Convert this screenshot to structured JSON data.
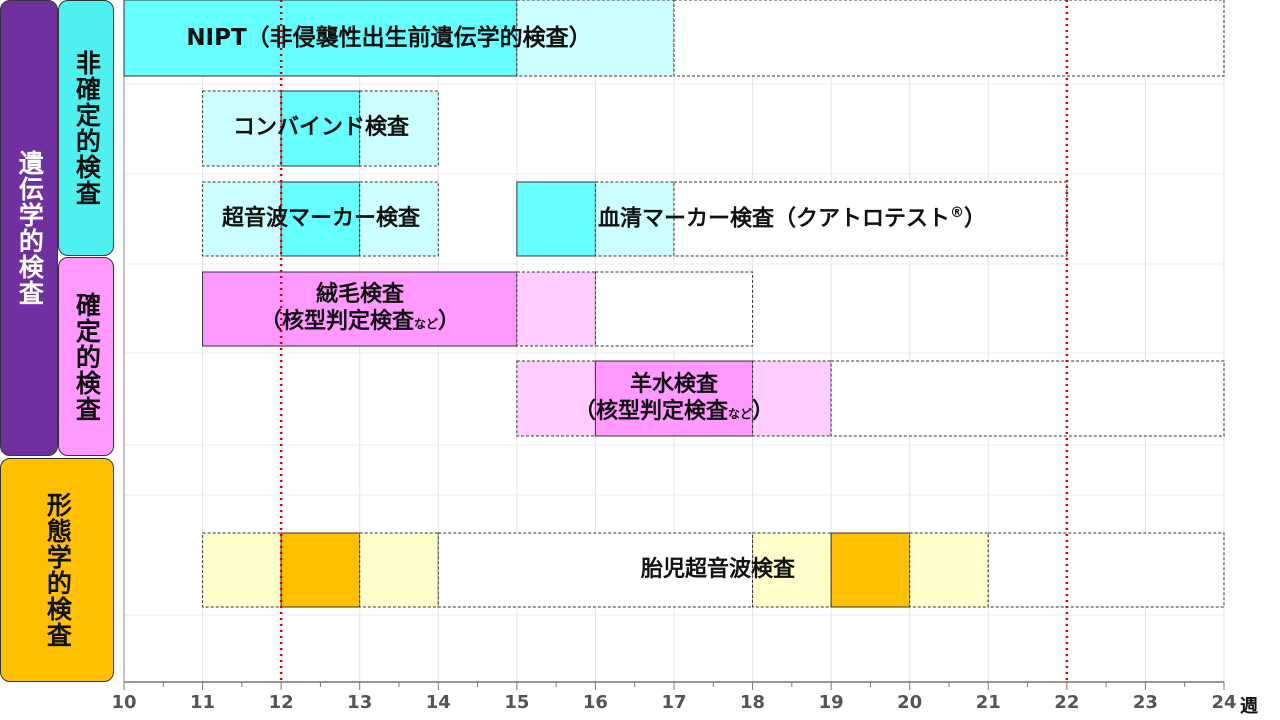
{
  "categories": {
    "genetic": "遺伝学的検査",
    "nonconfirm": "非確定的検査",
    "confirm": "確定的検査",
    "morph": "形態学的検査"
  },
  "axis": {
    "min": 10,
    "max": 24,
    "ticks": [
      "10",
      "11",
      "12",
      "13",
      "14",
      "15",
      "16",
      "17",
      "18",
      "19",
      "20",
      "21",
      "22",
      "23",
      "24"
    ],
    "unit": "週"
  },
  "reference_weeks": [
    12,
    22
  ],
  "tests": {
    "nipt": "NIPT（非侵襲性出生前遺伝学的検査）",
    "combined": "コンバインド検査",
    "us_marker": "超音波マーカー検査",
    "serum_marker": "血清マーカー検査（クアトロテスト",
    "serum_marker_mark": "®",
    "serum_marker_close": "）",
    "cvs": "絨毛検査",
    "cvs_sub": "（核型判定検査",
    "cvs_sub_small": "など",
    "cvs_sub_close": "）",
    "amnio": "羊水検査",
    "amnio_sub": "（核型判定検査",
    "amnio_sub_small": "など",
    "amnio_sub_close": "）",
    "fetal_us": "胎児超音波検査"
  },
  "colors": {
    "genetic": "#7030a0",
    "nonconfirm": "#4ef0f0",
    "confirm": "#ff99ff",
    "morph": "#ffc000",
    "cyan_dark": "#66ffff",
    "cyan_light": "#ccffff",
    "pink_dark": "#ff99ff",
    "pink_light": "#ffccff",
    "yellow_dark": "#ffc000",
    "yellow_light": "#ffffcc",
    "ref_line": "#e00000"
  },
  "chart_data": {
    "type": "gantt",
    "x_unit": "週",
    "rows": [
      {
        "label": "NIPT（非侵襲性出生前遺伝学的検査）",
        "segments": [
          {
            "start": 10,
            "end": 15,
            "shade": "cyan_dark",
            "border": "solid"
          },
          {
            "start": 15,
            "end": 17,
            "shade": "cyan_light",
            "border": "dashed"
          },
          {
            "start": 17,
            "end": 24,
            "shade": "none",
            "border": "dashed"
          }
        ]
      },
      {
        "label": "コンバインド検査",
        "segments": [
          {
            "start": 11,
            "end": 12,
            "shade": "cyan_light",
            "border": "dashed"
          },
          {
            "start": 12,
            "end": 13,
            "shade": "cyan_dark",
            "border": "solid"
          },
          {
            "start": 13,
            "end": 14,
            "shade": "cyan_light",
            "border": "dashed"
          }
        ]
      },
      {
        "label": "超音波マーカー検査",
        "segments": [
          {
            "start": 11,
            "end": 12,
            "shade": "cyan_light",
            "border": "dashed"
          },
          {
            "start": 12,
            "end": 13,
            "shade": "cyan_dark",
            "border": "solid"
          },
          {
            "start": 13,
            "end": 14,
            "shade": "cyan_light",
            "border": "dashed"
          }
        ]
      },
      {
        "label": "血清マーカー検査（クアトロテスト®）",
        "segments": [
          {
            "start": 15,
            "end": 16,
            "shade": "cyan_dark",
            "border": "solid"
          },
          {
            "start": 16,
            "end": 17,
            "shade": "cyan_light",
            "border": "dashed"
          },
          {
            "start": 17,
            "end": 22,
            "shade": "none",
            "border": "dashed"
          }
        ]
      },
      {
        "label": "絨毛検査（核型判定検査など）",
        "segments": [
          {
            "start": 11,
            "end": 15,
            "shade": "pink_dark",
            "border": "solid"
          },
          {
            "start": 15,
            "end": 16,
            "shade": "pink_light",
            "border": "dashed"
          },
          {
            "start": 16,
            "end": 18,
            "shade": "none",
            "border": "dashed"
          }
        ]
      },
      {
        "label": "羊水検査（核型判定検査など）",
        "segments": [
          {
            "start": 15,
            "end": 16,
            "shade": "pink_light",
            "border": "dashed"
          },
          {
            "start": 16,
            "end": 18,
            "shade": "pink_dark",
            "border": "solid"
          },
          {
            "start": 18,
            "end": 19,
            "shade": "pink_light",
            "border": "dashed"
          },
          {
            "start": 19,
            "end": 24,
            "shade": "none",
            "border": "dashed"
          }
        ]
      },
      {
        "label": "胎児超音波検査",
        "segments": [
          {
            "start": 11,
            "end": 12,
            "shade": "yellow_light",
            "border": "dashed"
          },
          {
            "start": 12,
            "end": 13,
            "shade": "yellow_dark",
            "border": "solid"
          },
          {
            "start": 13,
            "end": 14,
            "shade": "yellow_light",
            "border": "dashed"
          },
          {
            "start": 14,
            "end": 18,
            "shade": "none",
            "border": "dashed"
          },
          {
            "start": 18,
            "end": 19,
            "shade": "yellow_light",
            "border": "dashed"
          },
          {
            "start": 19,
            "end": 20,
            "shade": "yellow_dark",
            "border": "solid"
          },
          {
            "start": 20,
            "end": 21,
            "shade": "yellow_light",
            "border": "dashed"
          },
          {
            "start": 21,
            "end": 24,
            "shade": "none",
            "border": "dashed"
          }
        ]
      }
    ]
  }
}
